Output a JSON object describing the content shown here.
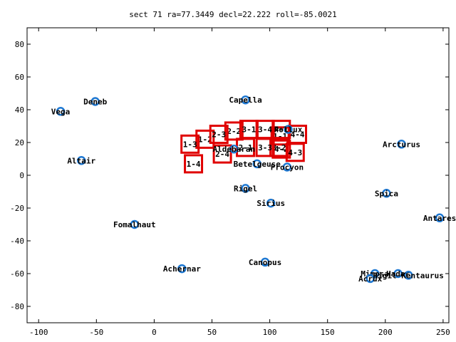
{
  "chart_data": {
    "type": "scatter",
    "title": "sect 71 ra=77.3449 decl=22.222 roll=-85.0021",
    "xlim": [
      -110,
      255
    ],
    "ylim": [
      -90,
      90
    ],
    "x_ticks": [
      -100,
      -50,
      0,
      50,
      100,
      150,
      200,
      250
    ],
    "y_ticks": [
      -80,
      -60,
      -40,
      -20,
      0,
      20,
      40,
      60,
      80
    ],
    "marker_color": "#1e78d2",
    "box_color": "#e00000",
    "stars": [
      {
        "name": "Vega",
        "x": -81,
        "y": 39
      },
      {
        "name": "Deneb",
        "x": -51,
        "y": 45
      },
      {
        "name": "Altair",
        "x": -63,
        "y": 9
      },
      {
        "name": "Capella",
        "x": 79,
        "y": 46
      },
      {
        "name": "Pollux",
        "x": 116,
        "y": 28
      },
      {
        "name": "Aldebaran",
        "x": 69,
        "y": 16
      },
      {
        "name": "Betelgeuse",
        "x": 89,
        "y": 7
      },
      {
        "name": "Procyon",
        "x": 115,
        "y": 5
      },
      {
        "name": "Arcturus",
        "x": 214,
        "y": 19
      },
      {
        "name": "Rigel",
        "x": 79,
        "y": -8
      },
      {
        "name": "Sirius",
        "x": 101,
        "y": -17
      },
      {
        "name": "Spica",
        "x": 201,
        "y": -11
      },
      {
        "name": "Fomalhaut",
        "x": -17,
        "y": -30
      },
      {
        "name": "Antares",
        "x": 247,
        "y": -26
      },
      {
        "name": "Canopus",
        "x": 96,
        "y": -53
      },
      {
        "name": "Achernar",
        "x": 24,
        "y": -57
      },
      {
        "name": "Mimosa",
        "x": 191,
        "y": -60
      },
      {
        "name": "Acrux",
        "x": 187,
        "y": -63
      },
      {
        "name": "Hadar",
        "x": 211,
        "y": -60
      },
      {
        "name": "Rigil Kentaurus",
        "x": 220,
        "y": -61
      }
    ],
    "sectors": [
      {
        "label": "1-1",
        "x": 109,
        "y": 24
      },
      {
        "label": "1-2",
        "x": 44,
        "y": 22
      },
      {
        "label": "1-3",
        "x": 31,
        "y": 19
      },
      {
        "label": "1-4",
        "x": 34,
        "y": 7
      },
      {
        "label": "2-1",
        "x": 79,
        "y": 17
      },
      {
        "label": "2-2",
        "x": 69,
        "y": 27
      },
      {
        "label": "2-3",
        "x": 56,
        "y": 25
      },
      {
        "label": "2-4",
        "x": 59,
        "y": 13
      },
      {
        "label": "3-1",
        "x": 82,
        "y": 28
      },
      {
        "label": "3-2",
        "x": 108,
        "y": 17
      },
      {
        "label": "3-3",
        "x": 96,
        "y": 17
      },
      {
        "label": "3-4",
        "x": 96,
        "y": 28
      },
      {
        "label": "4-1",
        "x": 110,
        "y": 28
      },
      {
        "label": "4-2",
        "x": 110,
        "y": 16
      },
      {
        "label": "4-3",
        "x": 122,
        "y": 14
      },
      {
        "label": "4-4",
        "x": 124,
        "y": 25
      }
    ]
  }
}
